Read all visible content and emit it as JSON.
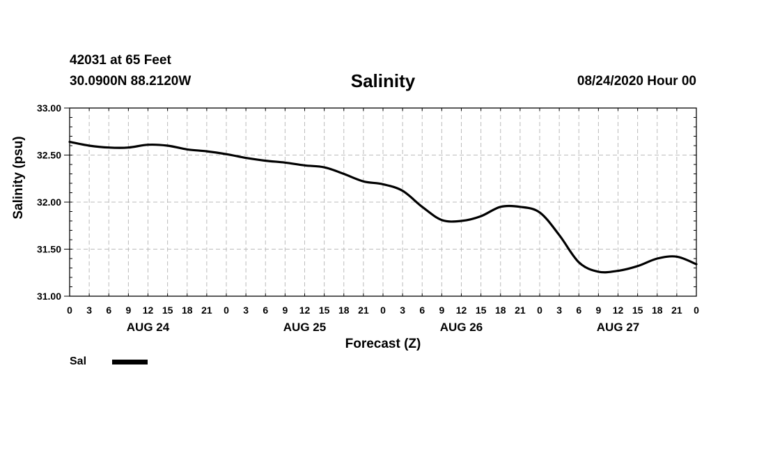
{
  "header": {
    "station": "42031 at 65 Feet",
    "coords": "30.0900N 88.2120W",
    "datetime": "08/24/2020 Hour 00"
  },
  "colors": {
    "line": "#000000",
    "grid": "#bbbbbb",
    "axis": "#000000"
  },
  "chart_data": {
    "type": "line",
    "title": "Salinity",
    "xlabel": "Forecast (Z)",
    "ylabel": "Salinity (psu)",
    "ylim": [
      31.0,
      33.0
    ],
    "xlim": [
      0,
      96
    ],
    "y_ticks": [
      "31.00",
      "31.50",
      "32.00",
      "32.50",
      "33.00"
    ],
    "x_tick_step": 3,
    "x_tick_labels": [
      "0",
      "3",
      "6",
      "9",
      "12",
      "15",
      "18",
      "21",
      "0",
      "3",
      "6",
      "9",
      "12",
      "15",
      "18",
      "21",
      "0",
      "3",
      "6",
      "9",
      "12",
      "15",
      "18",
      "21",
      "0",
      "3",
      "6",
      "9",
      "12",
      "15",
      "18",
      "21",
      "0"
    ],
    "day_labels": [
      {
        "label": "AUG 24",
        "hour": 12
      },
      {
        "label": "AUG 25",
        "hour": 36
      },
      {
        "label": "AUG 26",
        "hour": 60
      },
      {
        "label": "AUG 27",
        "hour": 84
      }
    ],
    "grid": true,
    "legend": "bottom-left",
    "series": [
      {
        "name": "Sal",
        "x": [
          0,
          3,
          6,
          9,
          12,
          15,
          18,
          21,
          24,
          27,
          30,
          33,
          36,
          39,
          42,
          45,
          48,
          51,
          54,
          57,
          60,
          63,
          66,
          69,
          72,
          75,
          78,
          81,
          84,
          87,
          90,
          93,
          96
        ],
        "values": [
          32.64,
          32.6,
          32.58,
          32.58,
          32.61,
          32.6,
          32.56,
          32.54,
          32.51,
          32.47,
          32.44,
          32.42,
          32.39,
          32.37,
          32.3,
          32.22,
          32.19,
          32.12,
          31.95,
          31.81,
          31.8,
          31.85,
          31.95,
          31.95,
          31.89,
          31.65,
          31.36,
          31.26,
          31.27,
          31.32,
          31.4,
          31.42,
          31.34
        ]
      }
    ]
  }
}
